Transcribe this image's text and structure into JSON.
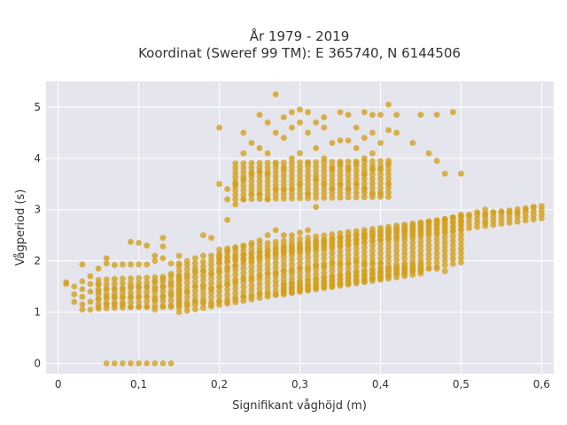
{
  "chart_data": {
    "type": "scatter",
    "title": "År 1979 - 2019",
    "subtitle": "Koordinat (Sweref 99 TM): E 365740, N 6144506",
    "xlabel": "Signifikant våghöjd (m)",
    "ylabel": "Vågperiod (s)",
    "xlim": [
      -0.015,
      0.615
    ],
    "ylim": [
      -0.2,
      5.5
    ],
    "x_ticks": [
      0,
      0.1,
      0.2,
      0.3,
      0.4,
      0.5,
      0.6
    ],
    "x_tick_labels": [
      "0",
      "0,1",
      "0,2",
      "0,3",
      "0,4",
      "0,5",
      "0,6"
    ],
    "y_ticks": [
      0,
      1,
      2,
      3,
      4,
      5
    ],
    "y_tick_labels": [
      "0",
      "1",
      "2",
      "3",
      "4",
      "5"
    ],
    "grid": true,
    "colors": {
      "marker": "#D4A017",
      "plot_bg": "#E5E5EE",
      "grid": "#FFFFFF"
    },
    "series": [
      {
        "points": [
          [
            0.01,
            1.55
          ],
          [
            0.01,
            1.58
          ],
          [
            0.02,
            1.2
          ],
          [
            0.02,
            1.35
          ],
          [
            0.02,
            1.5
          ],
          [
            0.03,
            1.05
          ],
          [
            0.03,
            1.15
          ],
          [
            0.03,
            1.3
          ],
          [
            0.03,
            1.45
          ],
          [
            0.03,
            1.6
          ],
          [
            0.03,
            1.93
          ],
          [
            0.04,
            1.05
          ],
          [
            0.04,
            1.2
          ],
          [
            0.04,
            1.4
          ],
          [
            0.04,
            1.55
          ],
          [
            0.04,
            1.7
          ],
          [
            0.05,
            1.1
          ],
          [
            0.05,
            1.25
          ],
          [
            0.05,
            1.4
          ],
          [
            0.05,
            1.55
          ],
          [
            0.05,
            1.85
          ],
          [
            0.06,
            1.15
          ],
          [
            0.06,
            1.3
          ],
          [
            0.06,
            1.45
          ],
          [
            0.06,
            1.95
          ],
          [
            0.06,
            2.05
          ],
          [
            0.06,
            0.0
          ],
          [
            0.07,
            1.15
          ],
          [
            0.07,
            1.3
          ],
          [
            0.07,
            1.45
          ],
          [
            0.07,
            1.92
          ],
          [
            0.07,
            0.0
          ],
          [
            0.08,
            1.15
          ],
          [
            0.08,
            1.3
          ],
          [
            0.08,
            1.45
          ],
          [
            0.08,
            1.93
          ],
          [
            0.08,
            0.0
          ],
          [
            0.09,
            1.1
          ],
          [
            0.09,
            1.3
          ],
          [
            0.09,
            1.5
          ],
          [
            0.09,
            1.93
          ],
          [
            0.09,
            2.37
          ],
          [
            0.09,
            0.0
          ],
          [
            0.1,
            1.1
          ],
          [
            0.1,
            1.3
          ],
          [
            0.1,
            1.5
          ],
          [
            0.1,
            1.93
          ],
          [
            0.1,
            2.35
          ],
          [
            0.1,
            0.0
          ],
          [
            0.11,
            1.1
          ],
          [
            0.11,
            1.3
          ],
          [
            0.11,
            1.5
          ],
          [
            0.11,
            1.93
          ],
          [
            0.11,
            2.3
          ],
          [
            0.11,
            0.0
          ],
          [
            0.12,
            1.05
          ],
          [
            0.12,
            1.25
          ],
          [
            0.12,
            1.45
          ],
          [
            0.12,
            1.6
          ],
          [
            0.12,
            2.0
          ],
          [
            0.12,
            2.1
          ],
          [
            0.12,
            0.0
          ],
          [
            0.13,
            1.1
          ],
          [
            0.13,
            1.3
          ],
          [
            0.13,
            1.5
          ],
          [
            0.13,
            1.65
          ],
          [
            0.13,
            2.05
          ],
          [
            0.13,
            2.28
          ],
          [
            0.13,
            2.45
          ],
          [
            0.13,
            0.0
          ],
          [
            0.14,
            1.1
          ],
          [
            0.14,
            1.35
          ],
          [
            0.14,
            1.55
          ],
          [
            0.14,
            1.75
          ],
          [
            0.14,
            1.95
          ],
          [
            0.14,
            0.0
          ],
          [
            0.15,
            1.15
          ],
          [
            0.15,
            1.4
          ],
          [
            0.15,
            1.65
          ],
          [
            0.15,
            1.95
          ],
          [
            0.15,
            2.1
          ],
          [
            0.16,
            1.15
          ],
          [
            0.16,
            1.4
          ],
          [
            0.16,
            1.7
          ],
          [
            0.16,
            2.0
          ],
          [
            0.17,
            1.2
          ],
          [
            0.17,
            1.5
          ],
          [
            0.17,
            1.8
          ],
          [
            0.17,
            2.05
          ],
          [
            0.18,
            1.2
          ],
          [
            0.18,
            1.5
          ],
          [
            0.18,
            1.8
          ],
          [
            0.18,
            2.1
          ],
          [
            0.18,
            2.5
          ],
          [
            0.19,
            1.15
          ],
          [
            0.19,
            1.45
          ],
          [
            0.19,
            1.75
          ],
          [
            0.19,
            2.1
          ],
          [
            0.19,
            2.45
          ],
          [
            0.2,
            1.2
          ],
          [
            0.2,
            1.5
          ],
          [
            0.2,
            1.8
          ],
          [
            0.2,
            2.1
          ],
          [
            0.2,
            3.5
          ],
          [
            0.2,
            4.6
          ],
          [
            0.21,
            1.2
          ],
          [
            0.21,
            1.55
          ],
          [
            0.21,
            1.85
          ],
          [
            0.21,
            2.2
          ],
          [
            0.21,
            2.8
          ],
          [
            0.21,
            3.2
          ],
          [
            0.21,
            3.4
          ],
          [
            0.22,
            1.25
          ],
          [
            0.22,
            1.6
          ],
          [
            0.22,
            1.9
          ],
          [
            0.22,
            2.25
          ],
          [
            0.22,
            3.1
          ],
          [
            0.22,
            3.5
          ],
          [
            0.23,
            1.3
          ],
          [
            0.23,
            1.65
          ],
          [
            0.23,
            2.0
          ],
          [
            0.23,
            2.3
          ],
          [
            0.23,
            3.2
          ],
          [
            0.23,
            3.6
          ],
          [
            0.23,
            4.1
          ],
          [
            0.23,
            4.5
          ],
          [
            0.24,
            1.3
          ],
          [
            0.24,
            1.65
          ],
          [
            0.24,
            2.0
          ],
          [
            0.24,
            2.35
          ],
          [
            0.24,
            3.3
          ],
          [
            0.24,
            3.7
          ],
          [
            0.24,
            4.3
          ],
          [
            0.25,
            1.35
          ],
          [
            0.25,
            1.7
          ],
          [
            0.25,
            2.05
          ],
          [
            0.25,
            2.4
          ],
          [
            0.25,
            3.3
          ],
          [
            0.25,
            3.75
          ],
          [
            0.25,
            4.2
          ],
          [
            0.25,
            4.85
          ],
          [
            0.26,
            1.35
          ],
          [
            0.26,
            1.75
          ],
          [
            0.26,
            2.1
          ],
          [
            0.26,
            2.5
          ],
          [
            0.26,
            3.2
          ],
          [
            0.26,
            3.7
          ],
          [
            0.26,
            4.1
          ],
          [
            0.26,
            4.7
          ],
          [
            0.27,
            1.35
          ],
          [
            0.27,
            1.75
          ],
          [
            0.27,
            2.15
          ],
          [
            0.27,
            2.6
          ],
          [
            0.27,
            3.4
          ],
          [
            0.27,
            3.9
          ],
          [
            0.27,
            4.5
          ],
          [
            0.27,
            5.25
          ],
          [
            0.28,
            1.4
          ],
          [
            0.28,
            1.8
          ],
          [
            0.28,
            2.2
          ],
          [
            0.28,
            2.5
          ],
          [
            0.28,
            3.4
          ],
          [
            0.28,
            3.8
          ],
          [
            0.28,
            4.4
          ],
          [
            0.28,
            4.8
          ],
          [
            0.29,
            1.4
          ],
          [
            0.29,
            1.8
          ],
          [
            0.29,
            2.2
          ],
          [
            0.29,
            2.5
          ],
          [
            0.29,
            3.4
          ],
          [
            0.29,
            4.0
          ],
          [
            0.29,
            4.6
          ],
          [
            0.29,
            4.9
          ],
          [
            0.3,
            1.45
          ],
          [
            0.3,
            1.85
          ],
          [
            0.3,
            2.25
          ],
          [
            0.3,
            2.55
          ],
          [
            0.3,
            3.5
          ],
          [
            0.3,
            4.1
          ],
          [
            0.3,
            4.7
          ],
          [
            0.3,
            4.95
          ],
          [
            0.31,
            1.45
          ],
          [
            0.31,
            1.85
          ],
          [
            0.31,
            2.25
          ],
          [
            0.31,
            2.6
          ],
          [
            0.31,
            3.3
          ],
          [
            0.31,
            3.9
          ],
          [
            0.31,
            4.5
          ],
          [
            0.31,
            4.9
          ],
          [
            0.32,
            1.5
          ],
          [
            0.32,
            1.9
          ],
          [
            0.32,
            2.3
          ],
          [
            0.32,
            3.05
          ],
          [
            0.32,
            3.6
          ],
          [
            0.32,
            4.2
          ],
          [
            0.32,
            4.7
          ],
          [
            0.33,
            1.5
          ],
          [
            0.33,
            1.9
          ],
          [
            0.33,
            2.35
          ],
          [
            0.33,
            3.5
          ],
          [
            0.33,
            4.0
          ],
          [
            0.33,
            4.6
          ],
          [
            0.33,
            4.8
          ],
          [
            0.34,
            1.5
          ],
          [
            0.34,
            1.95
          ],
          [
            0.34,
            2.4
          ],
          [
            0.34,
            3.4
          ],
          [
            0.34,
            3.8
          ],
          [
            0.34,
            4.3
          ],
          [
            0.35,
            1.55
          ],
          [
            0.35,
            1.95
          ],
          [
            0.35,
            2.45
          ],
          [
            0.35,
            3.5
          ],
          [
            0.35,
            3.9
          ],
          [
            0.35,
            4.35
          ],
          [
            0.35,
            4.9
          ],
          [
            0.36,
            1.55
          ],
          [
            0.36,
            1.95
          ],
          [
            0.36,
            2.4
          ],
          [
            0.36,
            3.4
          ],
          [
            0.36,
            3.8
          ],
          [
            0.36,
            4.35
          ],
          [
            0.36,
            4.85
          ],
          [
            0.37,
            1.6
          ],
          [
            0.37,
            2.0
          ],
          [
            0.37,
            2.4
          ],
          [
            0.37,
            3.5
          ],
          [
            0.37,
            3.9
          ],
          [
            0.37,
            4.2
          ],
          [
            0.37,
            4.6
          ],
          [
            0.38,
            1.6
          ],
          [
            0.38,
            1.95
          ],
          [
            0.38,
            2.5
          ],
          [
            0.38,
            3.4
          ],
          [
            0.38,
            3.7
          ],
          [
            0.38,
            4.0
          ],
          [
            0.38,
            4.4
          ],
          [
            0.38,
            4.9
          ],
          [
            0.39,
            1.65
          ],
          [
            0.39,
            1.95
          ],
          [
            0.39,
            2.5
          ],
          [
            0.39,
            3.3
          ],
          [
            0.39,
            3.8
          ],
          [
            0.39,
            4.1
          ],
          [
            0.39,
            4.5
          ],
          [
            0.39,
            4.85
          ],
          [
            0.4,
            1.65
          ],
          [
            0.4,
            1.95
          ],
          [
            0.4,
            2.5
          ],
          [
            0.4,
            3.3
          ],
          [
            0.4,
            3.8
          ],
          [
            0.4,
            4.3
          ],
          [
            0.4,
            4.85
          ],
          [
            0.41,
            1.7
          ],
          [
            0.41,
            1.85
          ],
          [
            0.41,
            2.55
          ],
          [
            0.41,
            3.5
          ],
          [
            0.41,
            3.9
          ],
          [
            0.41,
            4.55
          ],
          [
            0.41,
            5.05
          ],
          [
            0.42,
            1.75
          ],
          [
            0.42,
            1.85
          ],
          [
            0.42,
            2.6
          ],
          [
            0.42,
            4.5
          ],
          [
            0.42,
            4.85
          ],
          [
            0.43,
            1.75
          ],
          [
            0.43,
            1.85
          ],
          [
            0.43,
            2.6
          ],
          [
            0.44,
            1.8
          ],
          [
            0.44,
            1.85
          ],
          [
            0.44,
            2.65
          ],
          [
            0.44,
            4.3
          ],
          [
            0.45,
            1.8
          ],
          [
            0.45,
            1.85
          ],
          [
            0.45,
            2.7
          ],
          [
            0.45,
            4.85
          ],
          [
            0.46,
            1.85
          ],
          [
            0.46,
            2.75
          ],
          [
            0.46,
            4.1
          ],
          [
            0.47,
            1.85
          ],
          [
            0.47,
            2.75
          ],
          [
            0.47,
            3.95
          ],
          [
            0.47,
            4.85
          ],
          [
            0.48,
            1.8
          ],
          [
            0.48,
            2.8
          ],
          [
            0.48,
            3.7
          ],
          [
            0.49,
            2.85
          ],
          [
            0.49,
            4.9
          ],
          [
            0.5,
            2.9
          ],
          [
            0.5,
            2.75
          ],
          [
            0.5,
            3.7
          ],
          [
            0.51,
            2.9
          ],
          [
            0.52,
            2.95
          ],
          [
            0.53,
            2.9
          ],
          [
            0.53,
            3.0
          ],
          [
            0.53,
            2.75
          ],
          [
            0.54,
            2.95
          ],
          [
            0.55,
            2.95
          ],
          [
            0.56,
            2.95
          ],
          [
            0.57,
            2.95
          ],
          [
            0.58,
            3.0
          ],
          [
            0.59,
            3.05
          ]
        ],
        "bands": [
          {
            "x": [
              0.05,
              0.15
            ],
            "y_center": [
              1.35,
              1.42
            ],
            "spread": 0.28
          },
          {
            "x": [
              0.15,
              0.5
            ],
            "y_center": [
              1.45,
              2.42
            ],
            "spread": 0.45
          },
          {
            "x": [
              0.2,
              0.6
            ],
            "y_center": [
              2.1,
              2.95
            ],
            "spread": 0.12
          },
          {
            "x": [
              0.28,
              0.45
            ],
            "y_center": [
              1.45,
              1.85
            ],
            "spread": 0.1
          },
          {
            "x": [
              0.22,
              0.41
            ],
            "y_center": [
              3.55,
              3.6
            ],
            "spread": 0.35
          }
        ]
      }
    ]
  }
}
